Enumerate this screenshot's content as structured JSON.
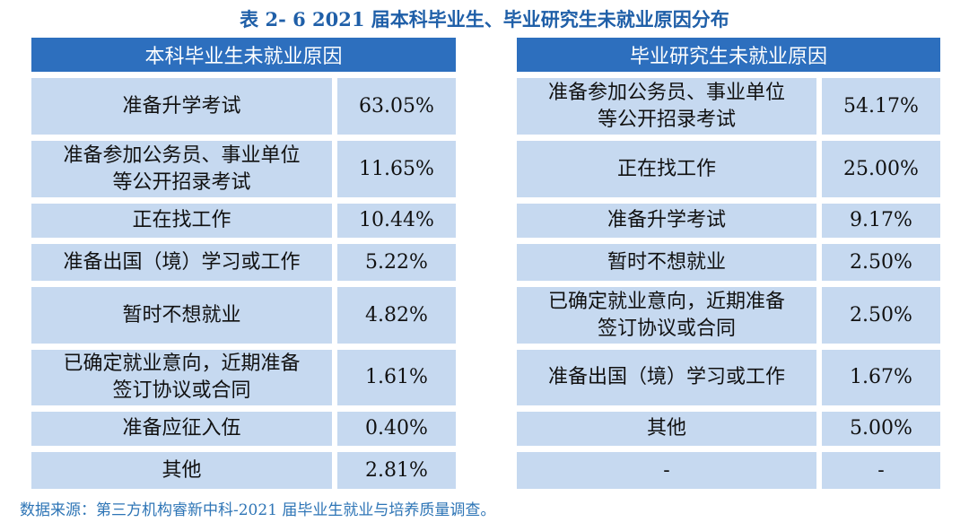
{
  "title": "表 2- 6  2021 届本科毕业生、毕业研究生未就业原因分布",
  "left": {
    "header": "本科毕业生未就业原因",
    "rows": [
      [
        "准备升学考试",
        "63.05%"
      ],
      [
        "准备参加公务员、事业单位等公开招录考试",
        "11.65%"
      ],
      [
        "正在找工作",
        "10.44%"
      ],
      [
        "准备出国（境）学习或工作",
        "5.22%"
      ],
      [
        "暂时不想就业",
        "4.82%"
      ],
      [
        "已确定就业意向，近期准备签订协议或合同",
        "1.61%"
      ],
      [
        "准备应征入伍",
        "0.40%"
      ],
      [
        "其他",
        "2.81%"
      ]
    ]
  },
  "right": {
    "header": "毕业研究生未就业原因",
    "rows": [
      [
        "准备参加公务员、事业单位等公开招录考试",
        "54.17%"
      ],
      [
        "正在找工作",
        "25.00%"
      ],
      [
        "准备升学考试",
        "9.17%"
      ],
      [
        "暂时不想就业",
        "2.50%"
      ],
      [
        "已确定就业意向，近期准备签订协议或合同",
        "2.50%"
      ],
      [
        "准备出国（境）学习或工作",
        "1.67%"
      ],
      [
        "其他",
        "5.00%"
      ],
      [
        "-",
        "-"
      ]
    ]
  },
  "note": "数据来源：第三方机构睿新中科-2021 届毕业生就业与培养质量调查。"
}
